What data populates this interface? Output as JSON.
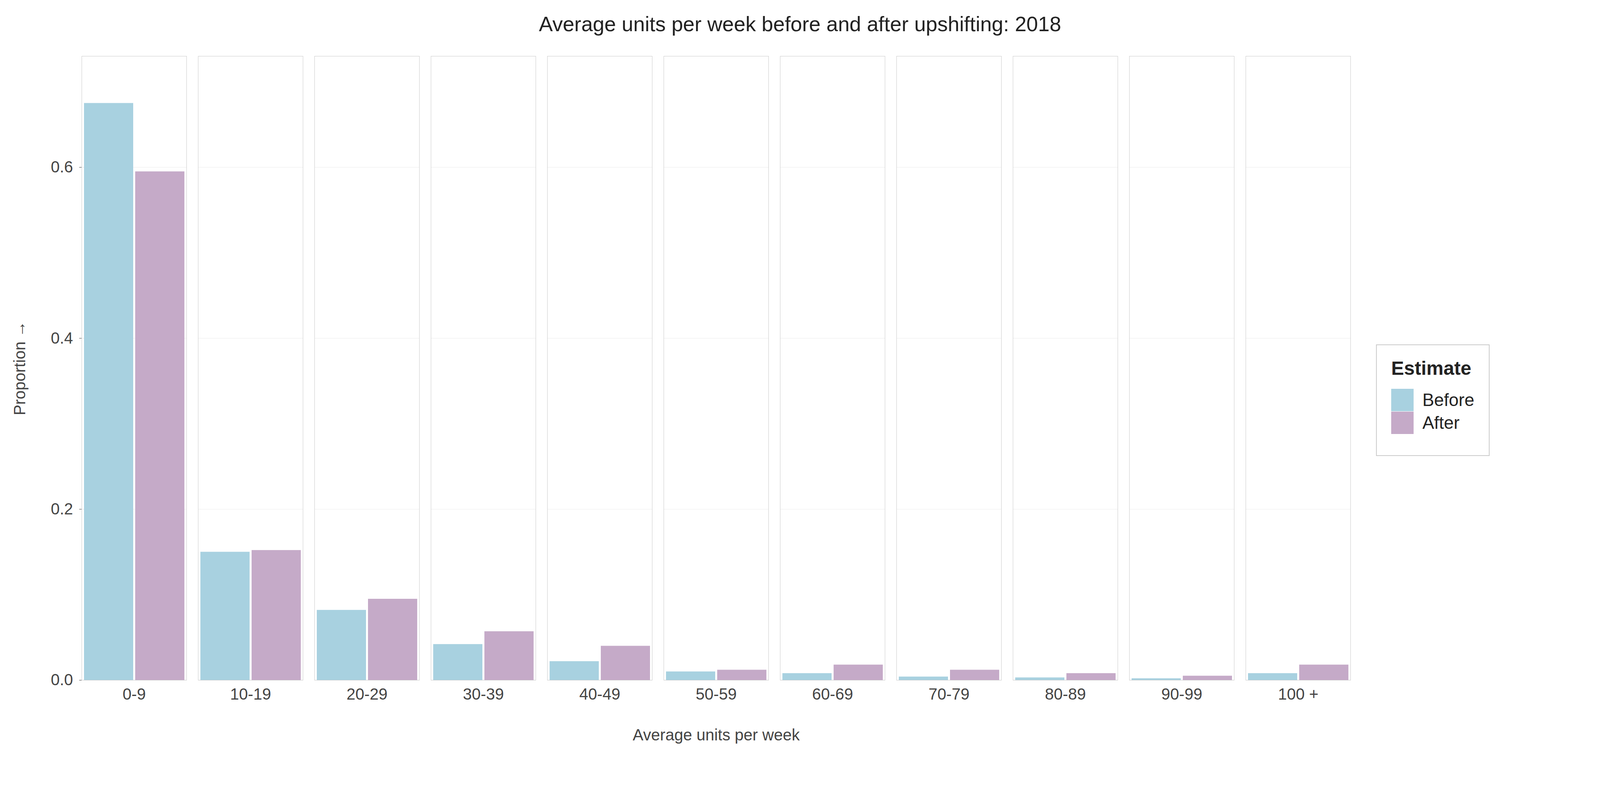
{
  "chart_data": {
    "type": "bar",
    "title": "Average units per week before and after upshifting: 2018",
    "xlabel": "Average units per week",
    "ylabel": "Proportion",
    "categories": [
      "0-9",
      "10-19",
      "20-29",
      "30-39",
      "40-49",
      "50-59",
      "60-69",
      "70-79",
      "80-89",
      "90-99",
      "100 +"
    ],
    "series": [
      {
        "name": "Before",
        "color": "#a8d1e0",
        "values": [
          0.675,
          0.15,
          0.082,
          0.042,
          0.022,
          0.01,
          0.008,
          0.004,
          0.003,
          0.002,
          0.008
        ]
      },
      {
        "name": "After",
        "color": "#c5aac8",
        "values": [
          0.595,
          0.152,
          0.095,
          0.057,
          0.04,
          0.012,
          0.018,
          0.012,
          0.008,
          0.005,
          0.018
        ]
      }
    ],
    "ylim": [
      0,
      0.73
    ],
    "yticks": [
      {
        "value": 0,
        "label": "0.0"
      },
      0.2,
      0.4,
      0.6
    ],
    "legend_title": "Estimate",
    "legend": "right",
    "grid": true
  }
}
